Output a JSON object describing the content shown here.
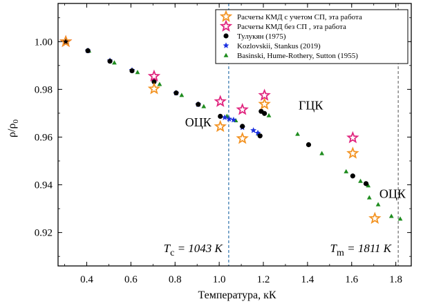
{
  "chart_data": {
    "type": "scatter",
    "xlabel": "Температура, кК",
    "ylabel": "ρ/ρ",
    "ylabel_sub": "0",
    "xlim": [
      0.27,
      1.87
    ],
    "ylim": [
      0.906,
      1.016
    ],
    "x_ticks": [
      0.4,
      0.6,
      0.8,
      1.0,
      1.2,
      1.4,
      1.6,
      1.8
    ],
    "x_tick_labels": [
      "0.4",
      "0.6",
      "0.8",
      "1.0",
      "1.2",
      "1.4",
      "1.6",
      "1.8"
    ],
    "y_ticks": [
      0.92,
      0.94,
      0.96,
      0.98,
      1.0
    ],
    "y_tick_labels": [
      "0.92",
      "0.94",
      "0.96",
      "0.98",
      "1.00"
    ],
    "grid": false,
    "legend_position": "top-right",
    "vlines": [
      {
        "x": 1.043,
        "color": "#3a7bb0",
        "label_main": "T",
        "label_sub": "c",
        "label_rest": " = 1043 K"
      },
      {
        "x": 1.811,
        "color": "#777777",
        "label_main": "T",
        "label_sub": "m",
        "label_rest": " = 1811 K"
      }
    ],
    "annotations": [
      {
        "text": "ОЦК",
        "x": 0.905,
        "y": 0.9645
      },
      {
        "text": "ГЦК",
        "x": 1.415,
        "y": 0.9715
      },
      {
        "text": "ОЦК",
        "x": 1.785,
        "y": 0.9345
      }
    ],
    "series": [
      {
        "name": "Расчеты КМД с учетом СП, эта работа",
        "marker": "star-open",
        "color": "#f39322",
        "x": [
          0.305,
          0.705,
          1.005,
          1.105,
          1.205,
          1.605,
          1.705
        ],
        "y": [
          1.0,
          0.9802,
          0.9644,
          0.9594,
          0.9738,
          0.9532,
          0.9259
        ]
      },
      {
        "name": "Расчеты КМД без СП , эта работа",
        "marker": "star-open",
        "color": "#e0247e",
        "x": [
          0.305,
          0.705,
          1.005,
          1.105,
          1.205,
          1.605
        ],
        "y": [
          1.0,
          0.9855,
          0.9749,
          0.9715,
          0.9775,
          0.9597
        ]
      },
      {
        "name": "Тулукян (1975)",
        "marker": "circle",
        "color": "#000000",
        "x": [
          0.305,
          0.405,
          0.505,
          0.605,
          0.705,
          0.805,
          0.905,
          1.005,
          1.105,
          1.185,
          1.19,
          1.205,
          1.405,
          1.605,
          1.665
        ],
        "y": [
          1.0,
          0.9962,
          0.9918,
          0.9878,
          0.9832,
          0.9785,
          0.9737,
          0.9687,
          0.9645,
          0.9605,
          0.9708,
          0.9699,
          0.9568,
          0.9437,
          0.9405
        ]
      },
      {
        "name": "Kozlovskii, Stankus (2019)",
        "marker": "star-filled",
        "color": "#1a2fe0",
        "x": [
          0.305,
          0.405,
          0.505,
          0.605,
          0.705,
          0.805,
          0.905,
          1.025,
          1.045,
          1.065,
          1.105,
          1.155,
          1.175
        ],
        "y": [
          1.0,
          0.9962,
          0.992,
          0.988,
          0.9835,
          0.9785,
          0.9737,
          0.9682,
          0.9676,
          0.9672,
          0.964,
          0.9628,
          0.9617
        ]
      },
      {
        "name": "Basinski, Hume-Rothery, Sutton (1955)",
        "marker": "triangle",
        "color": "#1e8c1e",
        "x": [
          0.31,
          0.41,
          0.525,
          0.63,
          0.73,
          0.83,
          0.93,
          1.035,
          1.075,
          1.18,
          1.225,
          1.355,
          1.465,
          1.575,
          1.64,
          1.675,
          1.68,
          1.72,
          1.78,
          1.82
        ],
        "y": [
          0.9998,
          0.9962,
          0.9912,
          0.9872,
          0.9822,
          0.9776,
          0.9729,
          0.9688,
          0.967,
          0.9614,
          0.9691,
          0.9613,
          0.9532,
          0.9456,
          0.9416,
          0.9397,
          0.9347,
          0.9318,
          0.9269,
          0.9258
        ]
      }
    ]
  }
}
